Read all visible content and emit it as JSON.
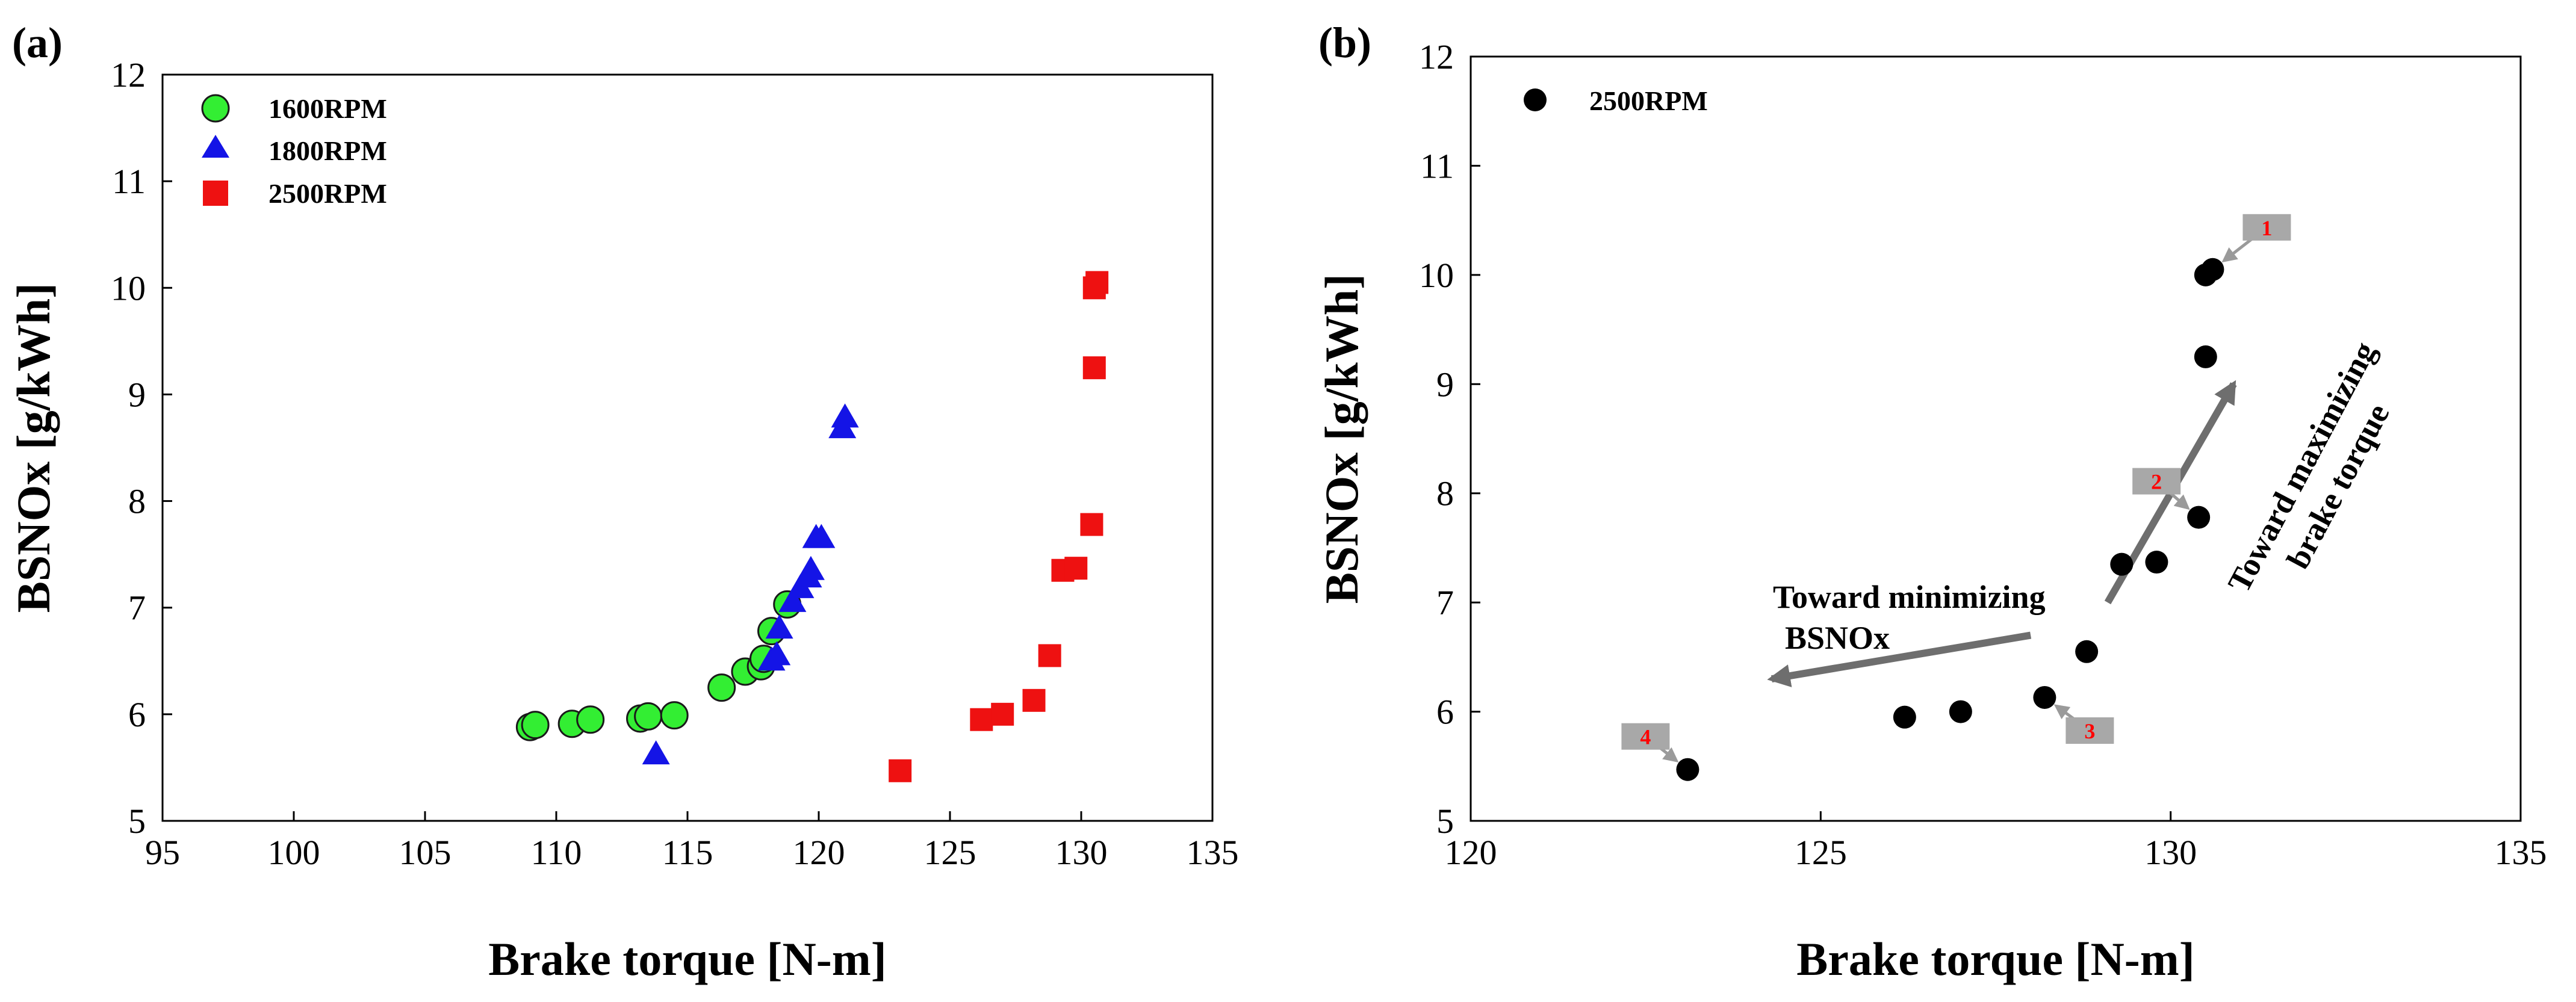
{
  "figure": {
    "panel_a_label": "(a)",
    "panel_b_label": "(b)"
  },
  "chart_data": [
    {
      "type": "scatter",
      "panel": "(a)",
      "title": "",
      "xlabel": "Brake torque [N-m]",
      "ylabel": "BSNOx [g/kWh]",
      "xlim": [
        95,
        135
      ],
      "ylim": [
        5,
        12
      ],
      "xticks": [
        95,
        100,
        105,
        110,
        115,
        120,
        125,
        130,
        135
      ],
      "yticks": [
        5,
        6,
        7,
        8,
        9,
        10,
        11,
        12
      ],
      "legend_position": "top-left",
      "series": [
        {
          "name": "1600RPM",
          "marker": "circle",
          "color": "#33ee33",
          "points": [
            [
              109.0,
              5.88
            ],
            [
              109.2,
              5.9
            ],
            [
              110.6,
              5.91
            ],
            [
              111.3,
              5.95
            ],
            [
              113.2,
              5.96
            ],
            [
              113.5,
              5.98
            ],
            [
              114.5,
              5.99
            ],
            [
              116.3,
              6.25
            ],
            [
              117.2,
              6.4
            ],
            [
              117.8,
              6.45
            ],
            [
              117.9,
              6.52
            ],
            [
              118.2,
              6.78
            ],
            [
              118.8,
              7.03
            ]
          ]
        },
        {
          "name": "1800RPM",
          "marker": "triangle",
          "color": "#1414e6",
          "points": [
            [
              113.8,
              5.62
            ],
            [
              118.2,
              6.5
            ],
            [
              118.4,
              6.55
            ],
            [
              118.5,
              6.8
            ],
            [
              119.0,
              7.05
            ],
            [
              119.3,
              7.18
            ],
            [
              119.6,
              7.28
            ],
            [
              119.7,
              7.35
            ],
            [
              119.9,
              7.65
            ],
            [
              120.1,
              7.65
            ],
            [
              120.9,
              8.68
            ],
            [
              121.0,
              8.78
            ]
          ]
        },
        {
          "name": "2500RPM",
          "marker": "square",
          "color": "#ee1111",
          "points": [
            [
              123.1,
              5.47
            ],
            [
              126.2,
              5.95
            ],
            [
              127.0,
              6.0
            ],
            [
              128.2,
              6.13
            ],
            [
              128.8,
              6.55
            ],
            [
              129.3,
              7.35
            ],
            [
              129.8,
              7.37
            ],
            [
              130.4,
              7.78
            ],
            [
              130.5,
              9.25
            ],
            [
              130.5,
              10.0
            ],
            [
              130.6,
              10.05
            ]
          ]
        }
      ]
    },
    {
      "type": "scatter",
      "panel": "(b)",
      "title": "",
      "xlabel": "Brake torque [N-m]",
      "ylabel": "BSNOx [g/kWh]",
      "xlim": [
        120,
        135
      ],
      "ylim": [
        5,
        12
      ],
      "xticks": [
        120,
        125,
        130,
        135
      ],
      "yticks": [
        5,
        6,
        7,
        8,
        9,
        10,
        11,
        12
      ],
      "legend_position": "top-left",
      "series": [
        {
          "name": "2500RPM",
          "marker": "circle",
          "color": "#000000",
          "points": [
            [
              123.1,
              5.47
            ],
            [
              126.2,
              5.95
            ],
            [
              127.0,
              6.0
            ],
            [
              128.2,
              6.13
            ],
            [
              128.8,
              6.55
            ],
            [
              129.3,
              7.35
            ],
            [
              129.8,
              7.37
            ],
            [
              130.4,
              7.78
            ],
            [
              130.5,
              9.25
            ],
            [
              130.5,
              10.0
            ],
            [
              130.6,
              10.05
            ]
          ]
        }
      ],
      "callouts": [
        {
          "label": "1",
          "point": [
            130.6,
            10.05
          ]
        },
        {
          "label": "2",
          "point": [
            130.4,
            7.78
          ]
        },
        {
          "label": "3",
          "point": [
            128.2,
            6.13
          ]
        },
        {
          "label": "4",
          "point": [
            123.1,
            5.47
          ]
        }
      ],
      "annotations": [
        {
          "lines": [
            "Toward minimizing",
            "BSNOx"
          ],
          "arrow_from": [
            128.0,
            6.7
          ],
          "arrow_to": [
            124.3,
            6.3
          ]
        },
        {
          "lines": [
            "Toward maximizing",
            "brake torque"
          ],
          "arrow_from": [
            129.1,
            7.0
          ],
          "arrow_to": [
            130.9,
            9.0
          ]
        }
      ]
    }
  ]
}
